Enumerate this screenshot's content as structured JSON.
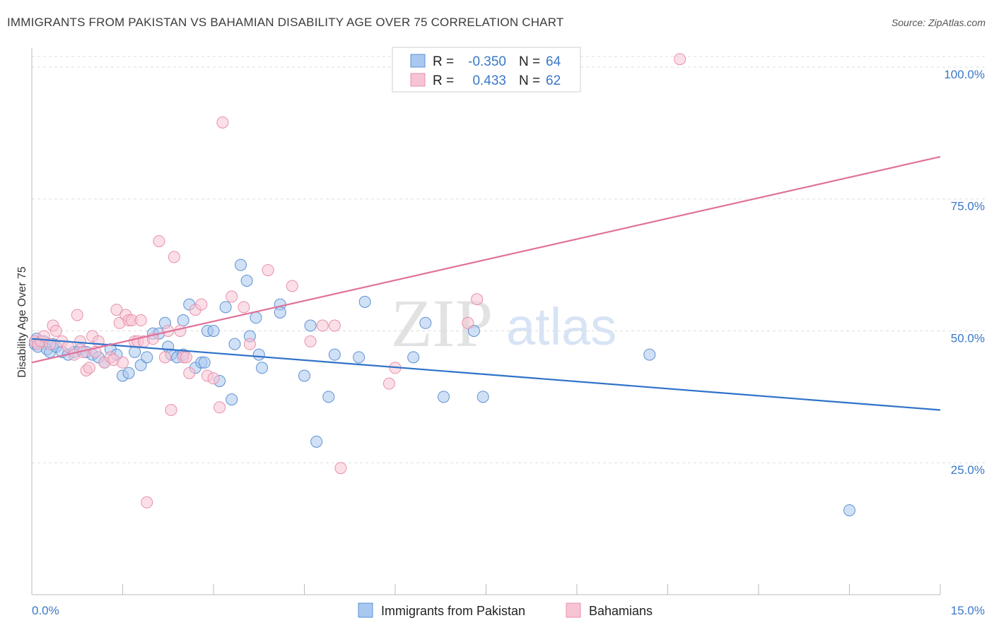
{
  "header": {
    "title": "IMMIGRANTS FROM PAKISTAN VS BAHAMIAN DISABILITY AGE OVER 75 CORRELATION CHART",
    "source": "Source: ZipAtlas.com"
  },
  "legend": {
    "r_label": "R =",
    "n_label": "N =",
    "rows": [
      {
        "r": "-0.350",
        "n": "64"
      },
      {
        "r": "0.433",
        "n": "62"
      }
    ]
  },
  "watermark": {
    "zip": "ZIP",
    "atlas": "atlas"
  },
  "colors": {
    "blue_fill": "#a9c8ef",
    "blue_stroke": "#5e90d4",
    "blue_line": "#2f72c9",
    "pink_fill": "#f7c4d4",
    "pink_stroke": "#e890ad",
    "pink_line": "#e0719a",
    "tick_text": "#3a78c8",
    "grid": "#dddddd"
  },
  "chart_data": {
    "type": "scatter",
    "title": "IMMIGRANTS FROM PAKISTAN VS BAHAMIAN DISABILITY AGE OVER 75 CORRELATION CHART",
    "xlabel": "",
    "ylabel": "Disability Age Over 75",
    "xlim": [
      0,
      15
    ],
    "ylim": [
      0,
      102
    ],
    "x_tick_labels": [
      "0.0%",
      "15.0%"
    ],
    "y_ticks": [
      25,
      50,
      75,
      100
    ],
    "y_tick_labels": [
      "25.0%",
      "50.0%",
      "75.0%",
      "100.0%"
    ],
    "grid": true,
    "legend_position": "top-center",
    "series": [
      {
        "name": "Immigrants from Pakistan",
        "r": -0.35,
        "n": 64,
        "trend": {
          "x": [
            0,
            15
          ],
          "y": [
            48.5,
            35.0
          ]
        },
        "points": [
          [
            0.05,
            47.5
          ],
          [
            0.08,
            48.5
          ],
          [
            0.1,
            47
          ],
          [
            0.15,
            48
          ],
          [
            0.2,
            48
          ],
          [
            0.25,
            46.5
          ],
          [
            0.3,
            46
          ],
          [
            0.35,
            47.5
          ],
          [
            0.4,
            47
          ],
          [
            0.5,
            46
          ],
          [
            0.6,
            45.5
          ],
          [
            0.7,
            46
          ],
          [
            0.8,
            46.5
          ],
          [
            0.9,
            46
          ],
          [
            1.0,
            45.5
          ],
          [
            1.1,
            45
          ],
          [
            1.2,
            44
          ],
          [
            1.3,
            46.5
          ],
          [
            1.4,
            45.5
          ],
          [
            1.5,
            41.5
          ],
          [
            1.6,
            42
          ],
          [
            1.7,
            46
          ],
          [
            1.8,
            43.5
          ],
          [
            1.9,
            45
          ],
          [
            2.0,
            49.5
          ],
          [
            2.1,
            49.5
          ],
          [
            2.2,
            51.5
          ],
          [
            2.25,
            47
          ],
          [
            2.3,
            45.5
          ],
          [
            2.4,
            45
          ],
          [
            2.5,
            45.5
          ],
          [
            2.5,
            52
          ],
          [
            2.6,
            55
          ],
          [
            2.7,
            43
          ],
          [
            2.8,
            44
          ],
          [
            2.85,
            44
          ],
          [
            2.9,
            50
          ],
          [
            3.0,
            50
          ],
          [
            3.1,
            40.5
          ],
          [
            3.2,
            54.5
          ],
          [
            3.3,
            37
          ],
          [
            3.35,
            47.5
          ],
          [
            3.45,
            62.5
          ],
          [
            3.55,
            59.5
          ],
          [
            3.6,
            49
          ],
          [
            3.7,
            52.5
          ],
          [
            3.75,
            45.5
          ],
          [
            3.8,
            43
          ],
          [
            4.1,
            55
          ],
          [
            4.1,
            53.5
          ],
          [
            4.5,
            41.5
          ],
          [
            4.6,
            51
          ],
          [
            4.7,
            29
          ],
          [
            4.9,
            37.5
          ],
          [
            5.0,
            45.5
          ],
          [
            5.4,
            45
          ],
          [
            5.5,
            55.5
          ],
          [
            6.3,
            45
          ],
          [
            6.5,
            51.5
          ],
          [
            6.8,
            37.5
          ],
          [
            7.3,
            50
          ],
          [
            7.45,
            37.5
          ],
          [
            10.2,
            45.5
          ],
          [
            13.5,
            16
          ]
        ]
      },
      {
        "name": "Bahamians",
        "r": 0.433,
        "n": 62,
        "trend": {
          "x": [
            0,
            15
          ],
          "y": [
            44.0,
            83.0
          ]
        },
        "points": [
          [
            0.05,
            48
          ],
          [
            0.1,
            47.5
          ],
          [
            0.15,
            48
          ],
          [
            0.2,
            49
          ],
          [
            0.3,
            47.5
          ],
          [
            0.35,
            51
          ],
          [
            0.4,
            50
          ],
          [
            0.5,
            48
          ],
          [
            0.6,
            47
          ],
          [
            0.7,
            45.5
          ],
          [
            0.75,
            53
          ],
          [
            0.8,
            48
          ],
          [
            0.85,
            46
          ],
          [
            0.9,
            42.5
          ],
          [
            0.95,
            43
          ],
          [
            1.0,
            49
          ],
          [
            1.05,
            46
          ],
          [
            1.1,
            48
          ],
          [
            1.2,
            44
          ],
          [
            1.3,
            45
          ],
          [
            1.35,
            44.5
          ],
          [
            1.4,
            54
          ],
          [
            1.45,
            51.5
          ],
          [
            1.5,
            44
          ],
          [
            1.55,
            53
          ],
          [
            1.6,
            52
          ],
          [
            1.65,
            52
          ],
          [
            1.7,
            48
          ],
          [
            1.75,
            48
          ],
          [
            1.8,
            52
          ],
          [
            1.85,
            48
          ],
          [
            1.9,
            17.5
          ],
          [
            2.0,
            48.5
          ],
          [
            2.1,
            67
          ],
          [
            2.2,
            45
          ],
          [
            2.25,
            50
          ],
          [
            2.3,
            35
          ],
          [
            2.35,
            64
          ],
          [
            2.45,
            50
          ],
          [
            2.5,
            45
          ],
          [
            2.55,
            45
          ],
          [
            2.6,
            42
          ],
          [
            2.7,
            54
          ],
          [
            2.8,
            55
          ],
          [
            2.9,
            41.5
          ],
          [
            3.0,
            41
          ],
          [
            3.1,
            35.5
          ],
          [
            3.15,
            89.5
          ],
          [
            3.3,
            56.5
          ],
          [
            3.5,
            54.5
          ],
          [
            3.6,
            47.5
          ],
          [
            3.9,
            61.5
          ],
          [
            4.3,
            58.5
          ],
          [
            4.6,
            48
          ],
          [
            4.8,
            51
          ],
          [
            5.0,
            51
          ],
          [
            5.1,
            24
          ],
          [
            5.9,
            40
          ],
          [
            6.0,
            43
          ],
          [
            7.2,
            51.5
          ],
          [
            7.35,
            56
          ],
          [
            10.7,
            101.5
          ]
        ]
      }
    ]
  },
  "bottom_legend": [
    {
      "label": "Immigrants from Pakistan"
    },
    {
      "label": "Bahamians"
    }
  ]
}
